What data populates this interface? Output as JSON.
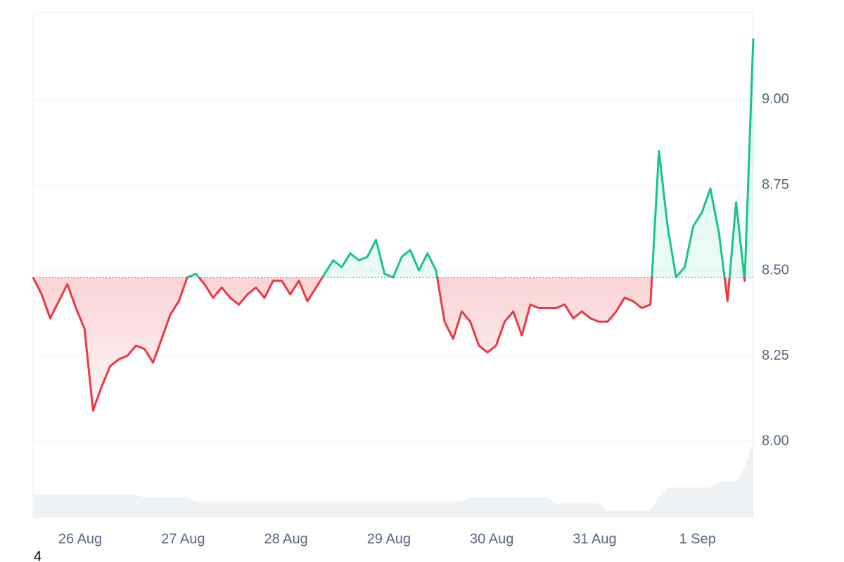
{
  "chart_data": {
    "type": "line",
    "baseline": 8.48,
    "up_color": "#16c784",
    "down_color": "#ea3943",
    "volume_color": "#eff2f5",
    "xlim": [
      0,
      84
    ],
    "xticks": [
      {
        "value": 5.5,
        "label": "26 Aug"
      },
      {
        "value": 17.5,
        "label": "27 Aug"
      },
      {
        "value": 29.5,
        "label": "28 Aug"
      },
      {
        "value": 41.5,
        "label": "29 Aug"
      },
      {
        "value": 53.5,
        "label": "30 Aug"
      },
      {
        "value": 65.5,
        "label": "31 Aug"
      },
      {
        "value": 77.5,
        "label": "1 Sep"
      }
    ],
    "ylim": [
      7.776,
      9.255
    ],
    "yticks": [
      {
        "value": 8,
        "label": "8.00"
      },
      {
        "value": 8.25,
        "label": "8.25"
      },
      {
        "value": 8.5,
        "label": "8.50"
      },
      {
        "value": 8.75,
        "label": "8.75"
      },
      {
        "value": 9,
        "label": "9.00"
      }
    ],
    "grid": true,
    "values": [
      8.48,
      8.43,
      8.36,
      8.41,
      8.46,
      8.39,
      8.33,
      8.09,
      8.16,
      8.22,
      8.24,
      8.25,
      8.28,
      8.27,
      8.23,
      8.3,
      8.37,
      8.41,
      8.48,
      8.49,
      8.46,
      8.42,
      8.45,
      8.42,
      8.4,
      8.43,
      8.45,
      8.42,
      8.47,
      8.47,
      8.43,
      8.47,
      8.41,
      8.45,
      8.49,
      8.53,
      8.51,
      8.55,
      8.53,
      8.54,
      8.59,
      8.49,
      8.48,
      8.54,
      8.56,
      8.5,
      8.55,
      8.5,
      8.35,
      8.3,
      8.38,
      8.35,
      8.28,
      8.26,
      8.28,
      8.35,
      8.38,
      8.31,
      8.4,
      8.39,
      8.39,
      8.39,
      8.4,
      8.36,
      8.38,
      8.36,
      8.35,
      8.35,
      8.38,
      8.42,
      8.41,
      8.39,
      8.4,
      8.85,
      8.63,
      8.48,
      8.51,
      8.63,
      8.67,
      8.74,
      8.61,
      8.41,
      8.7,
      8.47,
      9.18
    ],
    "vlim": [
      0,
      700
    ],
    "volumes": [
      32,
      32,
      32,
      32,
      32,
      32,
      32,
      32,
      32,
      32,
      32,
      32,
      32,
      28,
      28,
      28,
      28,
      28,
      28,
      22,
      22,
      22,
      22,
      22,
      22,
      22,
      22,
      22,
      22,
      22,
      22,
      22,
      22,
      22,
      22,
      22,
      22,
      22,
      22,
      22,
      22,
      22,
      22,
      22,
      22,
      22,
      22,
      22,
      22,
      22,
      22,
      28,
      28,
      28,
      28,
      28,
      28,
      28,
      28,
      28,
      28,
      20,
      20,
      20,
      20,
      20,
      20,
      10,
      10,
      10,
      10,
      10,
      10,
      30,
      42,
      42,
      42,
      42,
      42,
      42,
      50,
      50,
      50,
      70,
      105
    ]
  },
  "footnote": "4"
}
